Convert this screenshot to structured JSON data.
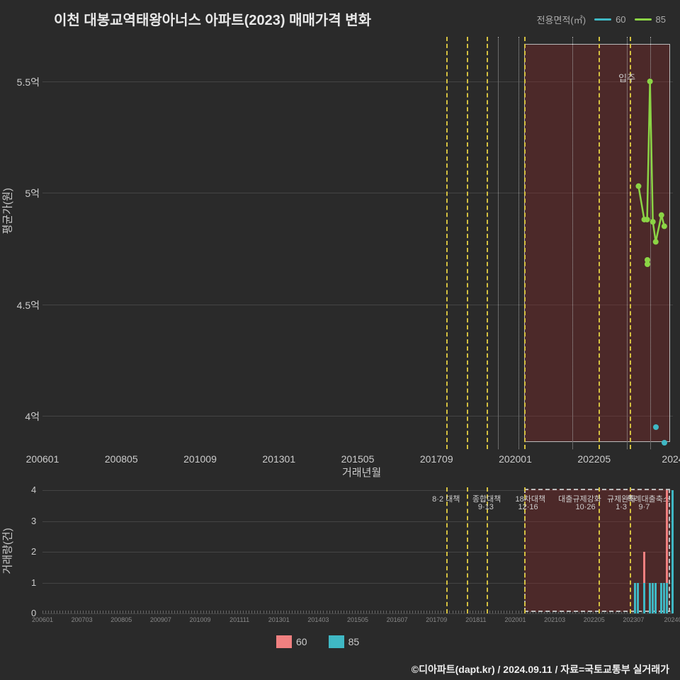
{
  "title": "이천 대봉교역태왕아너스 아파트(2023) 매매가격 변화",
  "legend_top": {
    "label": "전용면적(㎡)",
    "items": [
      {
        "name": "60",
        "color": "#3fb8c4"
      },
      {
        "name": "85",
        "color": "#8bd445"
      }
    ]
  },
  "main_chart": {
    "type": "line+scatter",
    "y_label": "평균가(원)",
    "x_label": "거래년월",
    "background_color": "#2a2a2a",
    "grid_color": "#444444",
    "y_ticks": [
      {
        "label": "4억",
        "value": 4.0
      },
      {
        "label": "4.5억",
        "value": 4.5
      },
      {
        "label": "5억",
        "value": 5.0
      },
      {
        "label": "5.5억",
        "value": 5.5
      }
    ],
    "ylim": [
      3.85,
      5.7
    ],
    "x_ticks": [
      "200601",
      "200805",
      "201009",
      "201301",
      "201505",
      "201709",
      "202001",
      "202205",
      "2024"
    ],
    "xlim_index": [
      0,
      220
    ],
    "shaded": {
      "x0_idx": 168,
      "x1_idx": 219,
      "color": "rgba(140,40,40,0.35)",
      "border": "#bbbbbb"
    },
    "vlines_yellow_idx": [
      141,
      148,
      155,
      168,
      194,
      205
    ],
    "vlines_dotted_idx": [
      159,
      166,
      185,
      204,
      212
    ],
    "annot_label": "입주",
    "annot_idx": 201,
    "series_85": {
      "color": "#8bd445",
      "points": [
        {
          "x": 208,
          "y": 5.03
        },
        {
          "x": 210,
          "y": 4.88
        },
        {
          "x": 211,
          "y": 4.88
        },
        {
          "x": 212,
          "y": 5.5
        },
        {
          "x": 213,
          "y": 4.87
        },
        {
          "x": 214,
          "y": 4.78
        },
        {
          "x": 216,
          "y": 4.9
        },
        {
          "x": 217,
          "y": 4.85
        }
      ],
      "extra_points": [
        {
          "x": 211,
          "y": 4.7
        },
        {
          "x": 211,
          "y": 4.68
        }
      ]
    },
    "series_60": {
      "color": "#3fb8c4",
      "points": [
        {
          "x": 214,
          "y": 3.95
        },
        {
          "x": 217,
          "y": 3.88
        }
      ]
    }
  },
  "sub_chart": {
    "type": "bar",
    "y_label": "거래량(건)",
    "ylim": [
      0,
      4.1
    ],
    "y_ticks": [
      0,
      1,
      2,
      3,
      4
    ],
    "x_ticks": [
      "200601",
      "200703",
      "200805",
      "200907",
      "201009",
      "201111",
      "201301",
      "201403",
      "201505",
      "201607",
      "201709",
      "201811",
      "202001",
      "202103",
      "202205",
      "202307",
      "20240"
    ],
    "shaded": {
      "x0_idx": 168,
      "x1_idx": 219
    },
    "vlines_yellow_idx": [
      141,
      148,
      155,
      168,
      194,
      205
    ],
    "annotations": [
      {
        "text": "8·2 대책",
        "x": 136
      },
      {
        "text": "9·13",
        "x": 152
      },
      {
        "text": "종합대책",
        "x": 150
      },
      {
        "text": "12·16",
        "x": 166
      },
      {
        "text": "18차대책",
        "x": 165
      },
      {
        "text": "10·26",
        "x": 186
      },
      {
        "text": "대출규제강화",
        "x": 180
      },
      {
        "text": "1·3",
        "x": 200
      },
      {
        "text": "규제완화",
        "x": 197
      },
      {
        "text": "9·7",
        "x": 208
      },
      {
        "text": "특례대출축소",
        "x": 204
      }
    ],
    "bars_60": {
      "color": "#f08080",
      "data": [
        {
          "x": 208,
          "h": 1
        },
        {
          "x": 210,
          "h": 2
        },
        {
          "x": 214,
          "h": 1
        },
        {
          "x": 218,
          "h": 4
        }
      ]
    },
    "bars_85": {
      "color": "#3fb8c4",
      "data": [
        {
          "x": 206,
          "h": 1
        },
        {
          "x": 207,
          "h": 1
        },
        {
          "x": 209,
          "h": 1
        },
        {
          "x": 211,
          "h": 1
        },
        {
          "x": 212,
          "h": 1
        },
        {
          "x": 213,
          "h": 1
        },
        {
          "x": 215,
          "h": 1
        },
        {
          "x": 216,
          "h": 1
        },
        {
          "x": 217,
          "h": 1
        },
        {
          "x": 219,
          "h": 4
        }
      ]
    }
  },
  "legend_bottom": {
    "items": [
      {
        "name": "60",
        "color": "#f08080"
      },
      {
        "name": "85",
        "color": "#3fb8c4"
      }
    ]
  },
  "footer": "©디아파트(dapt.kr) / 2024.09.11 / 자료=국토교통부 실거래가"
}
